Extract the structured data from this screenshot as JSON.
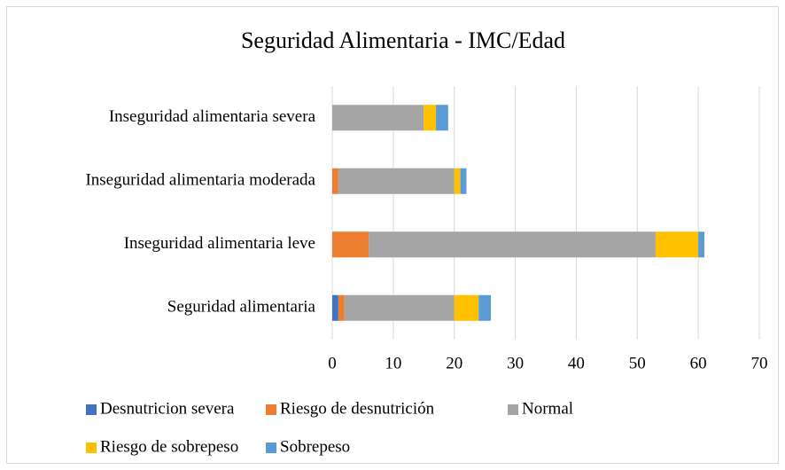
{
  "chart_data": {
    "type": "stacked-bar-horizontal",
    "title": "Seguridad Alimentaria - IMC/Edad",
    "categories": [
      "Seguridad alimentaria",
      "Inseguridad alimentaria leve",
      "Inseguridad alimentaria moderada",
      "Inseguridad alimentaria severa"
    ],
    "series": [
      {
        "name": "Desnutricion severa",
        "color": "#4472c4",
        "values": [
          1,
          0,
          0,
          0
        ]
      },
      {
        "name": "Riesgo de desnutrición",
        "color": "#ed7d31",
        "values": [
          1,
          6,
          1,
          0
        ]
      },
      {
        "name": "Normal",
        "color": "#a5a5a5",
        "values": [
          18,
          47,
          19,
          15
        ]
      },
      {
        "name": "Riesgo de sobrepeso",
        "color": "#ffc000",
        "values": [
          4,
          7,
          1,
          2
        ]
      },
      {
        "name": "Sobrepeso",
        "color": "#5b9bd5",
        "values": [
          2,
          1,
          1,
          2
        ]
      }
    ],
    "xlim": [
      0,
      70
    ],
    "xticks": [
      0,
      10,
      20,
      30,
      40,
      50,
      60,
      70
    ],
    "grid": true,
    "legend": "bottom"
  }
}
